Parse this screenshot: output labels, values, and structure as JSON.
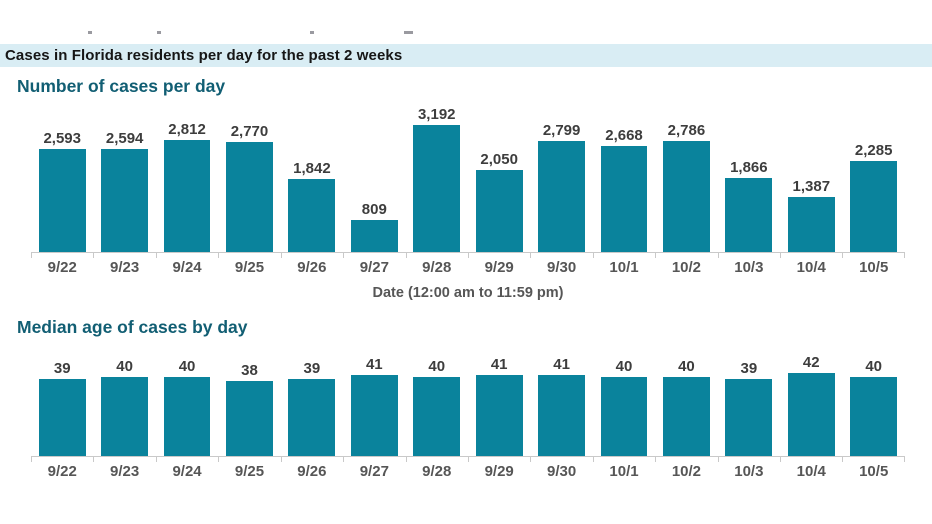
{
  "banner": {
    "title": "Cases in Florida residents per day for the past 2 weeks"
  },
  "colors": {
    "bar": "#0a839c",
    "heading": "#115e73",
    "banner-bg": "#d9edf4",
    "value-label": "#3d3d3d",
    "axis-text": "#565656",
    "axis-line": "#c9c9c9"
  },
  "chart_data": [
    {
      "type": "bar",
      "title": "Number of cases per day",
      "categories": [
        "9/22",
        "9/23",
        "9/24",
        "9/25",
        "9/26",
        "9/27",
        "9/28",
        "9/29",
        "9/30",
        "10/1",
        "10/2",
        "10/3",
        "10/4",
        "10/5"
      ],
      "values": [
        2593,
        2594,
        2812,
        2770,
        1842,
        809,
        3192,
        2050,
        2799,
        2668,
        2786,
        1866,
        1387,
        2285
      ],
      "value_labels": [
        "2,593",
        "2,594",
        "2,812",
        "2,770",
        "1,842",
        "809",
        "3,192",
        "2,050",
        "2,799",
        "2,668",
        "2,786",
        "1,866",
        "1,387",
        "2,285"
      ],
      "xlabel": "Date (12:00 am to 11:59 pm)",
      "ylabel": "",
      "ylim": [
        0,
        3192
      ],
      "grid": false,
      "legend": "none",
      "bar_color": "#0a839c"
    },
    {
      "type": "bar",
      "title": "Median age of cases by day",
      "categories": [
        "9/22",
        "9/23",
        "9/24",
        "9/25",
        "9/26",
        "9/27",
        "9/28",
        "9/29",
        "9/30",
        "10/1",
        "10/2",
        "10/3",
        "10/4",
        "10/5"
      ],
      "values": [
        39,
        40,
        40,
        38,
        39,
        41,
        40,
        41,
        41,
        40,
        40,
        39,
        42,
        40
      ],
      "value_labels": [
        "39",
        "40",
        "40",
        "38",
        "39",
        "41",
        "40",
        "41",
        "41",
        "40",
        "40",
        "39",
        "42",
        "40"
      ],
      "xlabel": "",
      "ylabel": "",
      "ylim": [
        0,
        42
      ],
      "grid": false,
      "legend": "none",
      "bar_color": "#0a839c"
    }
  ]
}
